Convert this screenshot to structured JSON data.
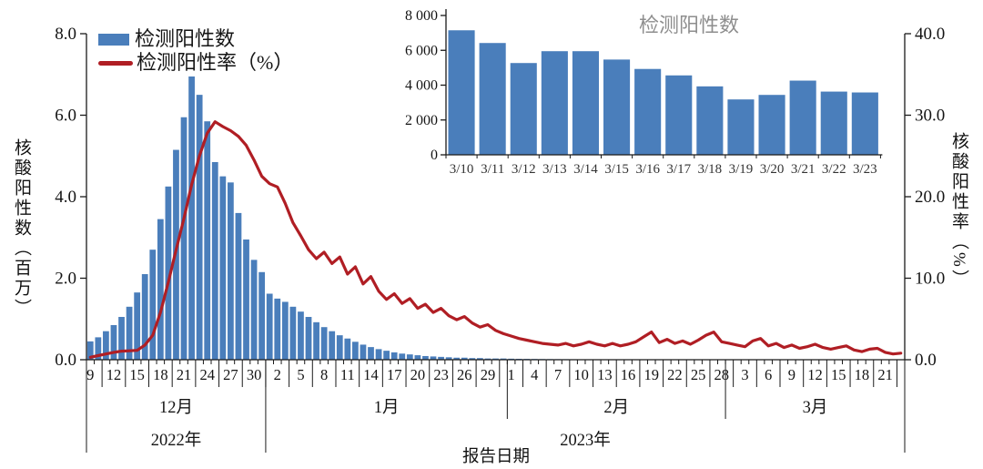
{
  "legend": {
    "count_label": "检测阳性数",
    "rate_label": "检测阳性率（%）"
  },
  "colors": {
    "bar": "#4A7EBB",
    "line": "#B01E24",
    "axis": "#1a1a1a",
    "inset_bar": "#4A7EBB",
    "inset_title": "#8E8E8E"
  },
  "chart_data": [
    {
      "name": "main",
      "type": "bar",
      "title": "",
      "x_axis": {
        "title": "报告日期",
        "tick_labels": [
          "9",
          "12",
          "15",
          "18",
          "21",
          "24",
          "27",
          "30",
          "2",
          "5",
          "8",
          "11",
          "14",
          "17",
          "20",
          "23",
          "26",
          "29",
          "1",
          "4",
          "7",
          "10",
          "13",
          "16",
          "19",
          "22",
          "25",
          "28",
          "3",
          "6",
          "9",
          "12",
          "15",
          "18",
          "21"
        ],
        "tick_day_indices": [
          0,
          3,
          6,
          9,
          12,
          15,
          18,
          21,
          24,
          27,
          30,
          33,
          36,
          39,
          42,
          45,
          48,
          51,
          54,
          57,
          60,
          63,
          66,
          69,
          72,
          75,
          78,
          81,
          84,
          87,
          90,
          93,
          96,
          99,
          102
        ],
        "months": [
          {
            "label": "12月",
            "days": 23
          },
          {
            "label": "1月",
            "days": 31
          },
          {
            "label": "2月",
            "days": 28
          },
          {
            "label": "3月",
            "days": 23
          }
        ],
        "years": [
          {
            "label": "2022年",
            "days": 23
          },
          {
            "label": "2023年",
            "days": 82
          }
        ]
      },
      "left_axis": {
        "title": "核酸阳性数（百万）",
        "tick_labels": [
          "0.0",
          "2.0",
          "4.0",
          "6.0",
          "8.0"
        ],
        "max": 8
      },
      "right_axis": {
        "title": "核酸阳性率（%）",
        "tick_labels": [
          "0.0",
          "10.0",
          "20.0",
          "30.0",
          "40.0"
        ],
        "max": 40
      },
      "series": [
        {
          "name": "检测阳性数",
          "type": "bar",
          "axis": "left",
          "unit": "百万",
          "values": [
            0.45,
            0.55,
            0.7,
            0.85,
            1.05,
            1.3,
            1.65,
            2.1,
            2.7,
            3.45,
            4.25,
            5.15,
            5.95,
            6.95,
            6.5,
            5.85,
            4.85,
            4.5,
            4.35,
            3.6,
            2.95,
            2.45,
            2.15,
            1.62,
            1.5,
            1.42,
            1.3,
            1.18,
            1.05,
            0.92,
            0.8,
            0.7,
            0.6,
            0.52,
            0.44,
            0.37,
            0.31,
            0.26,
            0.22,
            0.18,
            0.15,
            0.13,
            0.11,
            0.09,
            0.08,
            0.07,
            0.06,
            0.05,
            0.05,
            0.04,
            0.04,
            0.03,
            0.03,
            0.03,
            0.025,
            0.022,
            0.02,
            0.018,
            0.016,
            0.015,
            0.014,
            0.013,
            0.012,
            0.011,
            0.011,
            0.01,
            0.01,
            0.009,
            0.009,
            0.009,
            0.008,
            0.008,
            0.008,
            0.008,
            0.007,
            0.007,
            0.007,
            0.006,
            0.006,
            0.006,
            0.006,
            0.005,
            0.005,
            0.005,
            0.005,
            0.004,
            0.004,
            0.004,
            0.004,
            0.004,
            0.004,
            0.0071,
            0.0064,
            0.0053,
            0.0059,
            0.006,
            0.0055,
            0.0049,
            0.0046,
            0.0039,
            0.0032,
            0.0034,
            0.0043,
            0.0036,
            0.0036
          ]
        },
        {
          "name": "检测阳性率（%）",
          "type": "line",
          "axis": "right",
          "unit": "%",
          "values": [
            0.3,
            0.5,
            0.7,
            0.9,
            1.05,
            1.1,
            1.15,
            1.8,
            3.0,
            5.8,
            9.5,
            13.5,
            17.3,
            21.5,
            25.0,
            27.8,
            29.2,
            28.6,
            28.1,
            27.4,
            26.3,
            24.5,
            22.5,
            21.6,
            21.2,
            19.2,
            16.8,
            15.2,
            13.5,
            12.4,
            13.2,
            11.8,
            12.6,
            10.5,
            11.4,
            9.3,
            10.2,
            8.4,
            7.4,
            8.1,
            6.9,
            7.5,
            6.3,
            6.8,
            5.8,
            6.3,
            5.4,
            4.9,
            5.3,
            4.5,
            4.0,
            4.3,
            3.6,
            3.2,
            2.9,
            2.6,
            2.4,
            2.2,
            2.0,
            1.9,
            1.8,
            2.0,
            1.7,
            1.9,
            2.2,
            1.9,
            1.7,
            2.0,
            1.7,
            1.9,
            2.2,
            2.8,
            3.4,
            2.1,
            2.5,
            2.0,
            2.3,
            1.9,
            2.4,
            3.0,
            3.4,
            2.2,
            2.0,
            1.8,
            1.6,
            2.3,
            2.6,
            1.7,
            2.0,
            1.5,
            1.8,
            1.4,
            1.6,
            1.9,
            1.5,
            1.3,
            1.5,
            1.7,
            1.2,
            1.0,
            1.3,
            1.4,
            0.9,
            0.7,
            0.8
          ]
        }
      ]
    },
    {
      "name": "inset",
      "type": "bar",
      "title": "检测阳性数",
      "categories": [
        "3/10",
        "3/11",
        "3/12",
        "3/13",
        "3/14",
        "3/15",
        "3/16",
        "3/17",
        "3/18",
        "3/19",
        "3/20",
        "3/21",
        "3/22",
        "3/23"
      ],
      "values": [
        7150,
        6420,
        5270,
        5950,
        5950,
        5470,
        4930,
        4560,
        3930,
        3180,
        3440,
        4260,
        3630,
        3580
      ],
      "y_axis": {
        "tick_labels": [
          "0",
          "2 000",
          "4 000",
          "6 000",
          "8 000"
        ],
        "max": 8000
      }
    }
  ]
}
